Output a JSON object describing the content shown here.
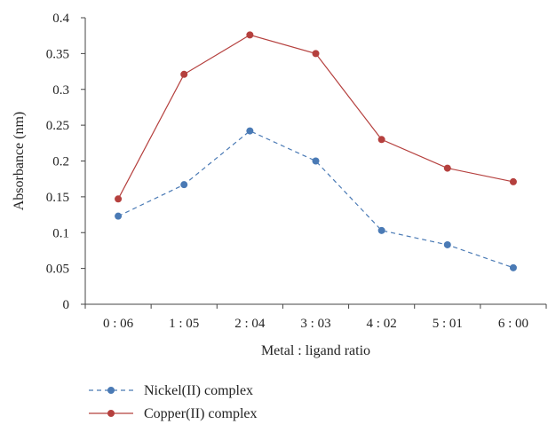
{
  "chart_data": {
    "type": "line",
    "title": "",
    "xlabel": "Metal : ligand ratio",
    "ylabel": "Absorbance (nm)",
    "categories": [
      "0 : 06",
      "1 : 05",
      "2 : 04",
      "3 : 03",
      "4 : 02",
      "5 : 01",
      "6 : 00"
    ],
    "ylim": [
      0,
      0.4
    ],
    "yticks": [
      "0",
      "0.05",
      "0.1",
      "0.15",
      "0.2",
      "0.25",
      "0.3",
      "0.35",
      "0.4"
    ],
    "grid": false,
    "legend_position": "bottom-left",
    "series": [
      {
        "name": "Nickel(II) complex",
        "values": [
          0.123,
          0.167,
          0.242,
          0.2,
          0.103,
          0.083,
          0.051
        ],
        "color": "#4a7ab5",
        "line_style": "dashed",
        "marker": "circle"
      },
      {
        "name": "Copper(II) complex",
        "values": [
          0.147,
          0.321,
          0.376,
          0.35,
          0.23,
          0.19,
          0.171
        ],
        "color": "#b5403e",
        "line_style": "solid",
        "marker": "circle"
      }
    ]
  }
}
